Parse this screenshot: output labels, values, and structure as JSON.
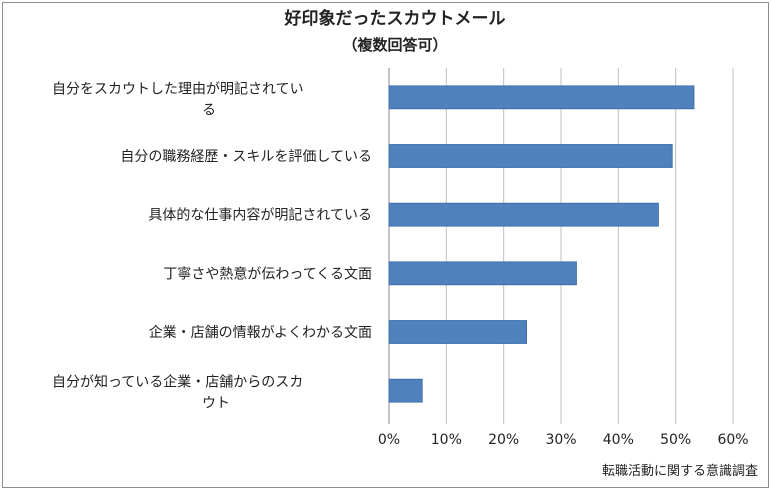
{
  "chart_data": {
    "type": "bar",
    "orientation": "horizontal",
    "title": "好印象だったスカウトメール",
    "subtitle": "（複数回答可）",
    "categories": [
      [
        "自分をスカウトした理由が明記されてい",
        "る"
      ],
      [
        "自分の職務経歴・スキルを評価している"
      ],
      [
        "具体的な仕事内容が明記されている"
      ],
      [
        "丁寧さや熱意が伝わってくる文面"
      ],
      [
        "企業・店舗の情報がよくわかる文面"
      ],
      [
        "自分が知っている企業・店舗からのスカ",
        "ウト"
      ]
    ],
    "values": [
      53.2,
      49.4,
      47.0,
      32.7,
      24.0,
      5.8
    ],
    "xlim": [
      0,
      60
    ],
    "xticks": [
      "0%",
      "10%",
      "20%",
      "30%",
      "40%",
      "50%",
      "60%"
    ],
    "grid": true,
    "legend": "none",
    "source": "転職活動に関する意識調査",
    "colors": {
      "bar": "#4f81bd",
      "bar_edge": "#3a6aa4",
      "grid": "#bfbfbf",
      "axis": "#888888"
    }
  }
}
